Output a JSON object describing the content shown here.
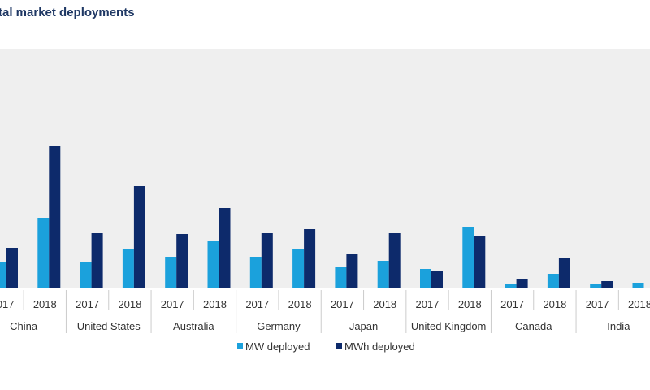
{
  "chart_data": {
    "type": "bar",
    "title": "tal market deployments",
    "categories": [
      "China",
      "United States",
      "Australia",
      "Germany",
      "Japan",
      "United Kingdom",
      "Canada",
      "India"
    ],
    "years": [
      "2017",
      "2018"
    ],
    "series": [
      {
        "name": "MW deployed",
        "color": "#1ba1dc",
        "values": [
          [
            33,
            87
          ],
          [
            33,
            49
          ],
          [
            39,
            58
          ],
          [
            39,
            48
          ],
          [
            27,
            34
          ],
          [
            24,
            76
          ],
          [
            5,
            18
          ],
          [
            5,
            7
          ]
        ]
      },
      {
        "name": "MWh deployed",
        "color": "#0d2a6b",
        "values": [
          [
            50,
            175
          ],
          [
            68,
            126
          ],
          [
            67,
            99
          ],
          [
            68,
            73
          ],
          [
            42,
            68
          ],
          [
            22,
            64
          ],
          [
            12,
            37
          ],
          [
            9,
            null
          ]
        ]
      }
    ],
    "ylim": [
      0,
      295
    ],
    "grid": false,
    "legend_placement": "bottom-center",
    "plot_background": "#efefef"
  }
}
